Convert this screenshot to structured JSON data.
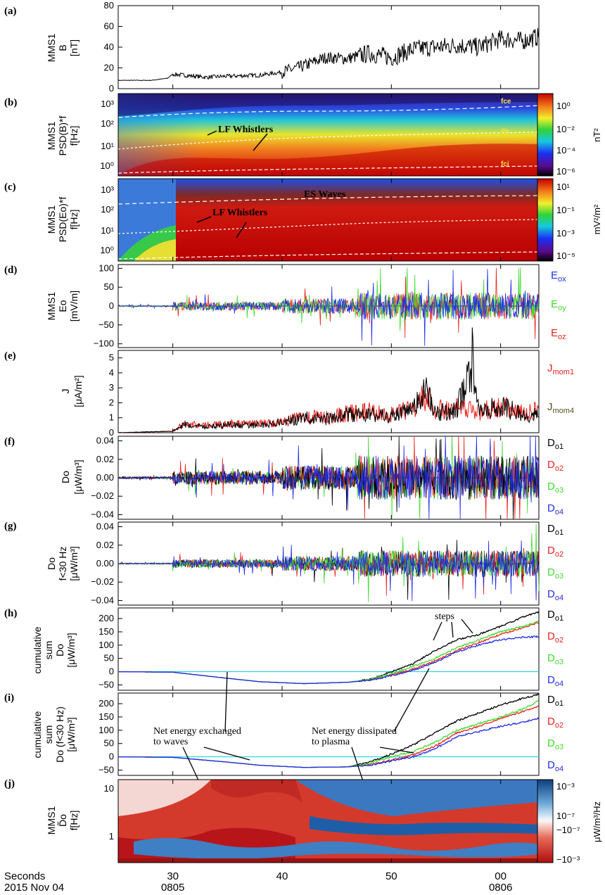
{
  "colors": {
    "black": "#000000",
    "red": "#e8211c",
    "green": "#3ddc2c",
    "blue": "#1f2ee6",
    "cyan": "#22d3e6",
    "olive": "#55521a"
  },
  "chart_data": [
    {
      "id": "a",
      "type": "line",
      "letter": "(a)",
      "ylabel_lines": [
        "MMS1",
        "B",
        "[nT]"
      ],
      "yticks": [
        "80",
        "60",
        "40",
        "20",
        "0"
      ],
      "ylim": [
        0,
        80
      ],
      "xlim": [
        25,
        63.5
      ],
      "series": [
        {
          "color": "black",
          "values": [
            [
              25,
              8
            ],
            [
              28,
              8
            ],
            [
              29.5,
              10
            ],
            [
              30,
              14
            ],
            [
              31,
              13
            ],
            [
              33,
              11
            ],
            [
              35,
              12
            ],
            [
              38,
              13
            ],
            [
              40,
              16
            ],
            [
              42,
              22
            ],
            [
              44,
              30
            ],
            [
              46,
              29
            ],
            [
              48,
              34
            ],
            [
              50,
              30
            ],
            [
              52,
              38
            ],
            [
              54,
              40
            ],
            [
              56,
              42
            ],
            [
              58,
              40
            ],
            [
              60,
              48
            ],
            [
              62,
              46
            ],
            [
              63.5,
              50
            ]
          ]
        }
      ]
    },
    {
      "id": "b",
      "type": "heatmap",
      "letter": "(b)",
      "ylabel_lines": [
        "MMS1",
        "PSD(B)*f",
        "f[Hz]"
      ],
      "yticks": [
        "10³",
        "10²",
        "10¹",
        "10⁰"
      ],
      "colorbar": {
        "ticks": [
          "10⁰",
          "10⁻²",
          "10⁻⁴",
          "10⁻⁶"
        ],
        "unit": "nT²"
      },
      "annotations": [
        "LF Whistlers",
        "fce",
        "flh",
        "fci"
      ]
    },
    {
      "id": "c",
      "type": "heatmap",
      "letter": "(c)",
      "ylabel_lines": [
        "MMS1",
        "PSD(Eo)*f",
        "f[Hz]"
      ],
      "yticks": [
        "10³",
        "10²",
        "10¹",
        "10⁰"
      ],
      "colorbar": {
        "ticks": [
          "10¹",
          "10⁻¹",
          "10⁻³",
          "10⁻⁵"
        ],
        "unit": "mV²/m²"
      },
      "annotations": [
        "ES Waves",
        "LF Whistlers"
      ]
    },
    {
      "id": "d",
      "type": "line",
      "letter": "(d)",
      "ylabel_lines": [
        "MMS1",
        "Eo",
        "[mV/m]"
      ],
      "yticks": [
        "100",
        "50",
        "0",
        "−50",
        "−100"
      ],
      "ylim": [
        -110,
        110
      ],
      "legend": [
        {
          "text": "Eox",
          "color": "blue"
        },
        {
          "text": "Eoy",
          "color": "green"
        },
        {
          "text": "Eoz",
          "color": "red"
        }
      ]
    },
    {
      "id": "e",
      "type": "line",
      "letter": "(e)",
      "ylabel_lines": [
        "J",
        "[μA/m²]"
      ],
      "yticks": [
        "5",
        "4",
        "3",
        "2",
        "1",
        "0"
      ],
      "ylim": [
        0,
        5.5
      ],
      "legend": [
        {
          "text": "Jmom1",
          "color": "red"
        },
        {
          "text": "Jmom4",
          "color": "olive"
        }
      ],
      "series": [
        {
          "color": "red",
          "values": [
            [
              25,
              0
            ],
            [
              30,
              0.1
            ],
            [
              31,
              0.6
            ],
            [
              33,
              0.5
            ],
            [
              35,
              0.6
            ],
            [
              38,
              0.6
            ],
            [
              40,
              0.7
            ],
            [
              42,
              1.1
            ],
            [
              44,
              1.0
            ],
            [
              46,
              1.3
            ],
            [
              48,
              1.4
            ],
            [
              50,
              1.2
            ],
            [
              52,
              1.6
            ],
            [
              53,
              2.5
            ],
            [
              54,
              1.5
            ],
            [
              56,
              1.6
            ],
            [
              58,
              1.4
            ],
            [
              60,
              1.8
            ],
            [
              62,
              1.3
            ],
            [
              63.5,
              1.5
            ]
          ]
        },
        {
          "color": "black",
          "values": [
            [
              25,
              0
            ],
            [
              30,
              0.1
            ],
            [
              31,
              0.5
            ],
            [
              33,
              0.4
            ],
            [
              35,
              0.5
            ],
            [
              38,
              0.5
            ],
            [
              40,
              0.7
            ],
            [
              42,
              1.0
            ],
            [
              44,
              0.9
            ],
            [
              46,
              1.2
            ],
            [
              48,
              1.2
            ],
            [
              50,
              1.1
            ],
            [
              52,
              1.5
            ],
            [
              53,
              3.0
            ],
            [
              54,
              1.3
            ],
            [
              56,
              1.5
            ],
            [
              57.5,
              5.1
            ],
            [
              58,
              1.3
            ],
            [
              60,
              1.8
            ],
            [
              62,
              1.2
            ],
            [
              63.5,
              1.2
            ]
          ]
        }
      ]
    },
    {
      "id": "f",
      "type": "line",
      "letter": "(f)",
      "ylabel_lines": [
        "Do",
        "[μW/m³]"
      ],
      "yticks": [
        "0.04",
        "0.02",
        "0.00",
        "−0.02",
        "−0.04"
      ],
      "ylim": [
        -0.045,
        0.045
      ],
      "legend": [
        {
          "text": "Do1",
          "color": "black"
        },
        {
          "text": "Do2",
          "color": "red"
        },
        {
          "text": "Do3",
          "color": "green"
        },
        {
          "text": "Do4",
          "color": "blue"
        }
      ]
    },
    {
      "id": "g",
      "type": "line",
      "letter": "(g)",
      "ylabel_lines": [
        "Do",
        "f<30 Hz",
        "[μW/m³]"
      ],
      "yticks": [
        "0.04",
        "0.02",
        "0.00",
        "−0.02",
        "−0.04"
      ],
      "ylim": [
        -0.045,
        0.045
      ],
      "legend": [
        {
          "text": "Do1",
          "color": "black"
        },
        {
          "text": "Do2",
          "color": "red"
        },
        {
          "text": "Do3",
          "color": "green"
        },
        {
          "text": "Do4",
          "color": "blue"
        }
      ]
    },
    {
      "id": "h",
      "type": "line",
      "letter": "(h)",
      "ylabel_lines": [
        "cumulative",
        "sum",
        "Do",
        "[μW/m³]"
      ],
      "yticks": [
        "200",
        "150",
        "100",
        "50",
        "0",
        "−50"
      ],
      "ylim": [
        -70,
        240
      ],
      "legend": [
        {
          "text": "Do1",
          "color": "black"
        },
        {
          "text": "Do2",
          "color": "red"
        },
        {
          "text": "Do3",
          "color": "green"
        },
        {
          "text": "Do4",
          "color": "blue"
        }
      ],
      "annotations": [
        "steps"
      ],
      "series": [
        {
          "color": "black",
          "values": [
            [
              25,
              0
            ],
            [
              30,
              -2
            ],
            [
              35,
              -25
            ],
            [
              38,
              -38
            ],
            [
              42,
              -45
            ],
            [
              46,
              -40
            ],
            [
              48,
              -30
            ],
            [
              50,
              0
            ],
            [
              52,
              30
            ],
            [
              54,
              80
            ],
            [
              56,
              120
            ],
            [
              58,
              140
            ],
            [
              60,
              170
            ],
            [
              62,
              205
            ],
            [
              63.5,
              225
            ]
          ]
        },
        {
          "color": "red",
          "values": [
            [
              25,
              0
            ],
            [
              30,
              -2
            ],
            [
              35,
              -25
            ],
            [
              38,
              -38
            ],
            [
              42,
              -45
            ],
            [
              46,
              -40
            ],
            [
              48,
              -32
            ],
            [
              50,
              -12
            ],
            [
              52,
              10
            ],
            [
              54,
              40
            ],
            [
              56,
              80
            ],
            [
              58,
              110
            ],
            [
              60,
              140
            ],
            [
              62,
              165
            ],
            [
              63.5,
              185
            ]
          ]
        },
        {
          "color": "green",
          "values": [
            [
              25,
              0
            ],
            [
              30,
              -2
            ],
            [
              35,
              -25
            ],
            [
              38,
              -38
            ],
            [
              42,
              -45
            ],
            [
              46,
              -40
            ],
            [
              48,
              -30
            ],
            [
              50,
              -8
            ],
            [
              52,
              20
            ],
            [
              54,
              50
            ],
            [
              56,
              90
            ],
            [
              58,
              120
            ],
            [
              60,
              150
            ],
            [
              62,
              170
            ],
            [
              63.5,
              190
            ]
          ]
        },
        {
          "color": "blue",
          "values": [
            [
              25,
              0
            ],
            [
              30,
              -2
            ],
            [
              35,
              -25
            ],
            [
              38,
              -38
            ],
            [
              42,
              -45
            ],
            [
              46,
              -40
            ],
            [
              48,
              -33
            ],
            [
              50,
              -15
            ],
            [
              52,
              5
            ],
            [
              54,
              35
            ],
            [
              56,
              75
            ],
            [
              58,
              100
            ],
            [
              60,
              120
            ],
            [
              62,
              130
            ],
            [
              63.5,
              132
            ]
          ]
        }
      ]
    },
    {
      "id": "i",
      "type": "line",
      "letter": "(i)",
      "ylabel_lines": [
        "cumulative",
        "sum",
        "Do (f<30 Hz)",
        "[μW/m³]"
      ],
      "yticks": [
        "200",
        "150",
        "100",
        "50",
        "0",
        "−50"
      ],
      "ylim": [
        -70,
        240
      ],
      "legend": [
        {
          "text": "Do1",
          "color": "black"
        },
        {
          "text": "Do2",
          "color": "red"
        },
        {
          "text": "Do3",
          "color": "green"
        },
        {
          "text": "Do4",
          "color": "blue"
        }
      ],
      "annotations": [
        "Net energy exchanged",
        "to waves",
        "Net energy dissipated",
        "to plasma"
      ],
      "series": [
        {
          "color": "black",
          "values": [
            [
              25,
              0
            ],
            [
              30,
              -2
            ],
            [
              35,
              -20
            ],
            [
              38,
              -32
            ],
            [
              42,
              -40
            ],
            [
              46,
              -38
            ],
            [
              48,
              -20
            ],
            [
              50,
              10
            ],
            [
              52,
              45
            ],
            [
              54,
              90
            ],
            [
              56,
              135
            ],
            [
              58,
              165
            ],
            [
              60,
              195
            ],
            [
              62,
              220
            ],
            [
              63.5,
              235
            ]
          ]
        },
        {
          "color": "red",
          "values": [
            [
              25,
              0
            ],
            [
              30,
              -2
            ],
            [
              35,
              -20
            ],
            [
              38,
              -32
            ],
            [
              42,
              -40
            ],
            [
              46,
              -38
            ],
            [
              48,
              -30
            ],
            [
              50,
              -12
            ],
            [
              52,
              8
            ],
            [
              54,
              40
            ],
            [
              56,
              90
            ],
            [
              58,
              115
            ],
            [
              60,
              145
            ],
            [
              62,
              170
            ],
            [
              63.5,
              190
            ]
          ]
        },
        {
          "color": "green",
          "values": [
            [
              25,
              0
            ],
            [
              30,
              -2
            ],
            [
              35,
              -20
            ],
            [
              38,
              -32
            ],
            [
              42,
              -40
            ],
            [
              46,
              -38
            ],
            [
              48,
              -25
            ],
            [
              50,
              0
            ],
            [
              52,
              20
            ],
            [
              54,
              55
            ],
            [
              56,
              100
            ],
            [
              58,
              125
            ],
            [
              60,
              150
            ],
            [
              62,
              180
            ],
            [
              63.5,
              210
            ]
          ]
        },
        {
          "color": "blue",
          "values": [
            [
              25,
              0
            ],
            [
              30,
              -2
            ],
            [
              35,
              -20
            ],
            [
              38,
              -32
            ],
            [
              42,
              -40
            ],
            [
              46,
              -38
            ],
            [
              48,
              -32
            ],
            [
              50,
              -15
            ],
            [
              52,
              0
            ],
            [
              54,
              30
            ],
            [
              56,
              75
            ],
            [
              58,
              95
            ],
            [
              60,
              115
            ],
            [
              62,
              130
            ],
            [
              63.5,
              145
            ]
          ]
        }
      ]
    },
    {
      "id": "j",
      "type": "heatmap",
      "letter": "(j)",
      "ylabel_lines": [
        "MMS1",
        "D̃o",
        "f[Hz]"
      ],
      "yticks": [
        "10",
        "1"
      ],
      "colorbar": {
        "ticks": [
          "10⁻³",
          "10⁻⁷",
          "−10⁻⁷",
          "−10⁻³"
        ],
        "unit": "μW/m³/Hz"
      }
    }
  ],
  "xaxis": {
    "ticks": [
      {
        "value": 30,
        "label": "30",
        "sub": "0805"
      },
      {
        "value": 40,
        "label": "40",
        "sub": ""
      },
      {
        "value": 50,
        "label": "50",
        "sub": ""
      },
      {
        "value": 60,
        "label": "00",
        "sub": "0806"
      }
    ],
    "row1": "Seconds",
    "row2": "2015 Nov 04"
  }
}
